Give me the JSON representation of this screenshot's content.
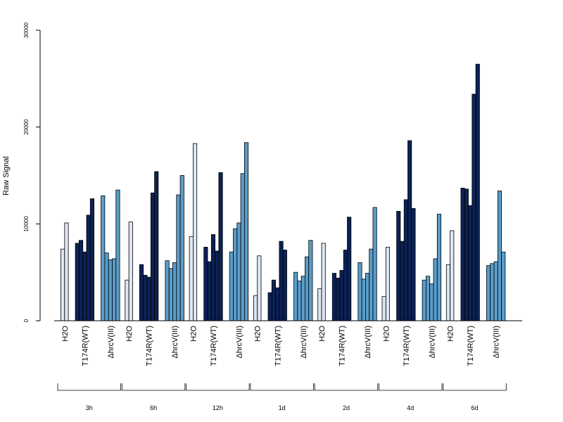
{
  "chart_data": {
    "type": "bar",
    "ylabel": "Raw Signal",
    "xlabel": "",
    "title": "",
    "ylim": [
      0,
      30000
    ],
    "yticks": [
      0,
      10000,
      20000,
      30000
    ],
    "tick_labels": [
      "0",
      "10000",
      "20000",
      "30000"
    ],
    "grid": false,
    "legend": "none",
    "colors": {
      "H2O": "#dde6f2",
      "T174R(WT)": "#0b2255",
      "ΔhrcV(III)": "#5a9dcb",
      "outline": "#000000",
      "axis": "#000000"
    },
    "group_labels": [
      "H2O",
      "T174R(WT)",
      "ΔhrcV(III)"
    ],
    "timepoints": [
      {
        "time": "3h",
        "groups": [
          {
            "name": "H2O",
            "values": [
              7400,
              10100
            ]
          },
          {
            "name": "T174R(WT)",
            "values": [
              8000,
              8300,
              7100,
              10900,
              12600
            ]
          },
          {
            "name": "ΔhrcV(III)",
            "values": [
              12900,
              7000,
              6300,
              6400,
              13500
            ]
          }
        ]
      },
      {
        "time": "6h",
        "groups": [
          {
            "name": "H2O",
            "values": [
              4200,
              10200
            ]
          },
          {
            "name": "T174R(WT)",
            "values": [
              5800,
              4700,
              4500,
              13200,
              15400
            ]
          },
          {
            "name": "ΔhrcV(III)",
            "values": [
              6200,
              5400,
              6000,
              13000,
              15000
            ]
          }
        ]
      },
      {
        "time": "12h",
        "groups": [
          {
            "name": "H2O",
            "values": [
              8700,
              18300
            ]
          },
          {
            "name": "T174R(WT)",
            "values": [
              7600,
              6100,
              8900,
              7200,
              15300
            ]
          },
          {
            "name": "ΔhrcV(III)",
            "values": [
              7100,
              9500,
              10100,
              15200,
              18400
            ]
          }
        ]
      },
      {
        "time": "1d",
        "groups": [
          {
            "name": "H2O",
            "values": [
              2600,
              6700
            ]
          },
          {
            "name": "T174R(WT)",
            "values": [
              2900,
              4200,
              3400,
              8200,
              7300
            ]
          },
          {
            "name": "ΔhrcV(III)",
            "values": [
              5000,
              4100,
              4600,
              6600,
              8300
            ]
          }
        ]
      },
      {
        "time": "2d",
        "groups": [
          {
            "name": "H2O",
            "values": [
              3300,
              8000
            ]
          },
          {
            "name": "T174R(WT)",
            "values": [
              4900,
              4400,
              5200,
              7300,
              10700
            ]
          },
          {
            "name": "ΔhrcV(III)",
            "values": [
              6000,
              4300,
              4900,
              7400,
              11700
            ]
          }
        ]
      },
      {
        "time": "4d",
        "groups": [
          {
            "name": "H2O",
            "values": [
              2500,
              7600
            ]
          },
          {
            "name": "T174R(WT)",
            "values": [
              11300,
              8200,
              12500,
              18600,
              11600
            ]
          },
          {
            "name": "ΔhrcV(III)",
            "values": [
              4200,
              4600,
              3800,
              6400,
              11000
            ]
          }
        ]
      },
      {
        "time": "6d",
        "groups": [
          {
            "name": "H2O",
            "values": [
              5800,
              9300
            ]
          },
          {
            "name": "T174R(WT)",
            "values": [
              13700,
              13600,
              11900,
              23400,
              26500
            ]
          },
          {
            "name": "ΔhrcV(III)",
            "values": [
              5700,
              5900,
              6100,
              13400,
              7100
            ]
          }
        ]
      }
    ]
  }
}
